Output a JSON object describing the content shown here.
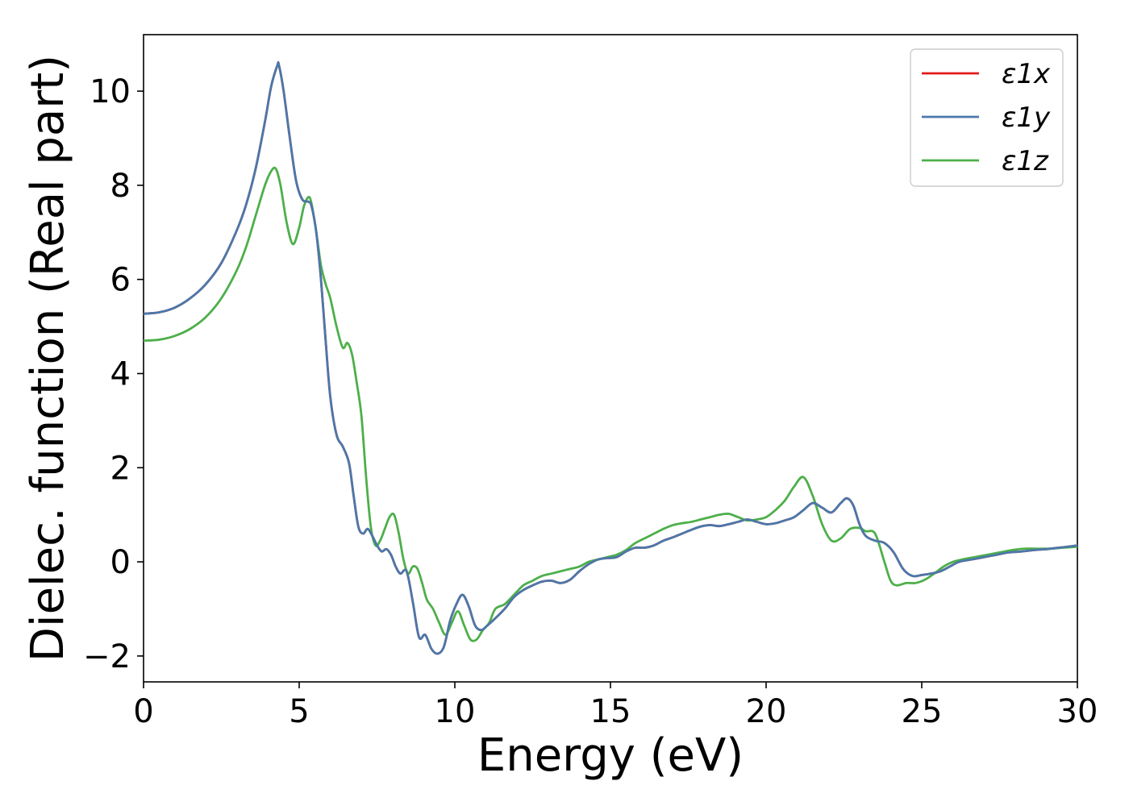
{
  "chart_data": {
    "type": "line",
    "title": "",
    "xlabel": "Energy (eV)",
    "ylabel": "Dielec. function (Real part)",
    "xlim": [
      0,
      30
    ],
    "ylim": [
      -2.55,
      11.2
    ],
    "xticks": [
      0,
      5,
      10,
      15,
      20,
      25,
      30
    ],
    "yticks": [
      -2,
      0,
      2,
      4,
      6,
      8,
      10
    ],
    "ytick_labels": [
      "−2",
      "0",
      "2",
      "4",
      "6",
      "8",
      "10"
    ],
    "grid": false,
    "legend_position": "top-right",
    "series": [
      {
        "name": "ε1x",
        "color": "#e41a1c",
        "x": [
          0,
          0.5,
          1,
          1.5,
          2,
          2.5,
          3,
          3.3,
          3.6,
          3.9,
          4.1,
          4.3,
          4.35,
          4.5,
          4.7,
          4.9,
          5.1,
          5.3,
          5.4,
          5.55,
          5.7,
          5.85,
          6.0,
          6.2,
          6.4,
          6.6,
          6.75,
          6.9,
          7.05,
          7.2,
          7.35,
          7.5,
          7.65,
          7.8,
          7.95,
          8.1,
          8.25,
          8.45,
          8.65,
          8.85,
          9.05,
          9.25,
          9.45,
          9.65,
          9.85,
          10.05,
          10.25,
          10.45,
          10.65,
          10.85,
          11.05,
          11.3,
          11.6,
          11.9,
          12.2,
          12.5,
          12.8,
          13.1,
          13.4,
          13.7,
          14.0,
          14.3,
          14.6,
          14.9,
          15.2,
          15.5,
          15.8,
          16.1,
          16.4,
          16.7,
          17.0,
          17.3,
          17.6,
          17.9,
          18.2,
          18.5,
          18.8,
          19.1,
          19.4,
          19.7,
          20.0,
          20.3,
          20.6,
          20.9,
          21.2,
          21.5,
          21.8,
          22.1,
          22.4,
          22.6,
          22.8,
          23.0,
          23.2,
          23.5,
          23.8,
          24.1,
          24.4,
          24.7,
          25.0,
          25.3,
          25.6,
          25.9,
          26.2,
          26.6,
          27.0,
          27.4,
          27.8,
          28.2,
          28.6,
          29.0,
          29.4,
          29.8,
          30.0
        ],
        "y": [
          5.27,
          5.3,
          5.4,
          5.6,
          5.9,
          6.35,
          7.05,
          7.6,
          8.35,
          9.35,
          10.1,
          10.55,
          10.55,
          10.0,
          9.0,
          8.1,
          7.7,
          7.65,
          7.55,
          7.0,
          6.0,
          4.7,
          3.5,
          2.7,
          2.45,
          2.1,
          1.4,
          0.75,
          0.6,
          0.7,
          0.55,
          0.35,
          0.22,
          0.27,
          0.15,
          -0.1,
          -0.25,
          -0.2,
          -0.85,
          -1.6,
          -1.55,
          -1.85,
          -1.95,
          -1.8,
          -1.25,
          -0.9,
          -0.7,
          -0.95,
          -1.35,
          -1.45,
          -1.35,
          -1.2,
          -1.0,
          -0.75,
          -0.6,
          -0.5,
          -0.42,
          -0.4,
          -0.45,
          -0.38,
          -0.2,
          -0.05,
          0.05,
          0.08,
          0.1,
          0.22,
          0.3,
          0.3,
          0.35,
          0.45,
          0.52,
          0.6,
          0.68,
          0.75,
          0.78,
          0.76,
          0.8,
          0.85,
          0.9,
          0.85,
          0.8,
          0.82,
          0.88,
          0.95,
          1.1,
          1.25,
          1.15,
          1.05,
          1.25,
          1.35,
          1.2,
          0.8,
          0.55,
          0.45,
          0.4,
          0.2,
          -0.15,
          -0.3,
          -0.28,
          -0.25,
          -0.2,
          -0.1,
          0.0,
          0.05,
          0.1,
          0.15,
          0.2,
          0.22,
          0.25,
          0.27,
          0.3,
          0.33,
          0.35
        ]
      },
      {
        "name": "ε1y",
        "color": "#4a78aa",
        "x": [
          0,
          0.5,
          1,
          1.5,
          2,
          2.5,
          3,
          3.3,
          3.6,
          3.9,
          4.1,
          4.3,
          4.35,
          4.5,
          4.7,
          4.9,
          5.1,
          5.3,
          5.4,
          5.55,
          5.7,
          5.85,
          6.0,
          6.2,
          6.4,
          6.6,
          6.75,
          6.9,
          7.05,
          7.2,
          7.35,
          7.5,
          7.65,
          7.8,
          7.95,
          8.1,
          8.25,
          8.45,
          8.65,
          8.85,
          9.05,
          9.25,
          9.45,
          9.65,
          9.85,
          10.05,
          10.25,
          10.45,
          10.65,
          10.85,
          11.05,
          11.3,
          11.6,
          11.9,
          12.2,
          12.5,
          12.8,
          13.1,
          13.4,
          13.7,
          14.0,
          14.3,
          14.6,
          14.9,
          15.2,
          15.5,
          15.8,
          16.1,
          16.4,
          16.7,
          17.0,
          17.3,
          17.6,
          17.9,
          18.2,
          18.5,
          18.8,
          19.1,
          19.4,
          19.7,
          20.0,
          20.3,
          20.6,
          20.9,
          21.2,
          21.5,
          21.8,
          22.1,
          22.4,
          22.6,
          22.8,
          23.0,
          23.2,
          23.5,
          23.8,
          24.1,
          24.4,
          24.7,
          25.0,
          25.3,
          25.6,
          25.9,
          26.2,
          26.6,
          27.0,
          27.4,
          27.8,
          28.2,
          28.6,
          29.0,
          29.4,
          29.8,
          30.0
        ],
        "y": [
          5.27,
          5.3,
          5.4,
          5.6,
          5.9,
          6.35,
          7.05,
          7.6,
          8.35,
          9.35,
          10.1,
          10.55,
          10.55,
          10.0,
          9.0,
          8.1,
          7.7,
          7.65,
          7.55,
          7.0,
          6.0,
          4.7,
          3.5,
          2.7,
          2.45,
          2.1,
          1.4,
          0.75,
          0.6,
          0.7,
          0.55,
          0.35,
          0.22,
          0.27,
          0.15,
          -0.1,
          -0.25,
          -0.2,
          -0.85,
          -1.6,
          -1.55,
          -1.85,
          -1.95,
          -1.8,
          -1.25,
          -0.9,
          -0.7,
          -0.95,
          -1.35,
          -1.45,
          -1.35,
          -1.2,
          -1.0,
          -0.75,
          -0.6,
          -0.5,
          -0.42,
          -0.4,
          -0.45,
          -0.38,
          -0.2,
          -0.05,
          0.05,
          0.08,
          0.1,
          0.22,
          0.3,
          0.3,
          0.35,
          0.45,
          0.52,
          0.6,
          0.68,
          0.75,
          0.78,
          0.76,
          0.8,
          0.85,
          0.9,
          0.85,
          0.8,
          0.82,
          0.88,
          0.95,
          1.1,
          1.25,
          1.15,
          1.05,
          1.25,
          1.35,
          1.2,
          0.8,
          0.55,
          0.45,
          0.4,
          0.2,
          -0.15,
          -0.3,
          -0.28,
          -0.25,
          -0.2,
          -0.1,
          0.0,
          0.05,
          0.1,
          0.15,
          0.2,
          0.22,
          0.25,
          0.27,
          0.3,
          0.33,
          0.35
        ]
      },
      {
        "name": "ε1z",
        "color": "#4daf4a",
        "x": [
          0,
          0.5,
          1,
          1.5,
          2,
          2.5,
          3,
          3.3,
          3.6,
          3.9,
          4.1,
          4.25,
          4.4,
          4.6,
          4.8,
          5.0,
          5.15,
          5.3,
          5.4,
          5.55,
          5.7,
          5.85,
          6.0,
          6.2,
          6.4,
          6.55,
          6.7,
          6.85,
          7.0,
          7.15,
          7.3,
          7.45,
          7.6,
          7.75,
          7.9,
          8.05,
          8.2,
          8.35,
          8.5,
          8.65,
          8.8,
          8.95,
          9.1,
          9.3,
          9.5,
          9.7,
          9.9,
          10.1,
          10.3,
          10.5,
          10.7,
          10.9,
          11.1,
          11.3,
          11.6,
          11.9,
          12.2,
          12.5,
          12.8,
          13.1,
          13.4,
          13.7,
          14.0,
          14.3,
          14.6,
          14.9,
          15.2,
          15.5,
          15.8,
          16.1,
          16.4,
          16.7,
          17.0,
          17.3,
          17.6,
          17.9,
          18.2,
          18.5,
          18.8,
          19.1,
          19.4,
          19.7,
          20.0,
          20.3,
          20.6,
          20.9,
          21.2,
          21.5,
          21.8,
          22.1,
          22.4,
          22.7,
          23.0,
          23.2,
          23.5,
          23.8,
          24.0,
          24.2,
          24.5,
          24.8,
          25.1,
          25.4,
          25.7,
          26.0,
          26.3,
          26.7,
          27.1,
          27.5,
          27.9,
          28.3,
          28.7,
          29.1,
          29.5,
          30.0
        ],
        "y": [
          4.7,
          4.72,
          4.8,
          4.95,
          5.2,
          5.6,
          6.2,
          6.7,
          7.35,
          8.0,
          8.3,
          8.35,
          8.0,
          7.2,
          6.75,
          7.1,
          7.55,
          7.75,
          7.6,
          7.0,
          6.3,
          5.9,
          5.6,
          5.0,
          4.55,
          4.65,
          4.4,
          3.8,
          3.1,
          1.8,
          0.75,
          0.35,
          0.45,
          0.7,
          0.95,
          1.0,
          0.6,
          0.05,
          -0.25,
          -0.1,
          -0.15,
          -0.45,
          -0.8,
          -1.0,
          -1.3,
          -1.55,
          -1.3,
          -1.05,
          -1.35,
          -1.65,
          -1.65,
          -1.45,
          -1.3,
          -1.0,
          -0.9,
          -0.7,
          -0.5,
          -0.4,
          -0.3,
          -0.25,
          -0.2,
          -0.15,
          -0.1,
          0.0,
          0.05,
          0.1,
          0.15,
          0.25,
          0.4,
          0.5,
          0.6,
          0.7,
          0.78,
          0.82,
          0.85,
          0.9,
          0.95,
          1.0,
          1.02,
          0.95,
          0.88,
          0.9,
          0.95,
          1.1,
          1.3,
          1.6,
          1.8,
          1.4,
          0.8,
          0.45,
          0.5,
          0.7,
          0.72,
          0.65,
          0.6,
          0.0,
          -0.4,
          -0.5,
          -0.45,
          -0.45,
          -0.38,
          -0.25,
          -0.1,
          0.0,
          0.05,
          0.1,
          0.15,
          0.2,
          0.25,
          0.28,
          0.28,
          0.28,
          0.3,
          0.32
        ]
      }
    ]
  }
}
